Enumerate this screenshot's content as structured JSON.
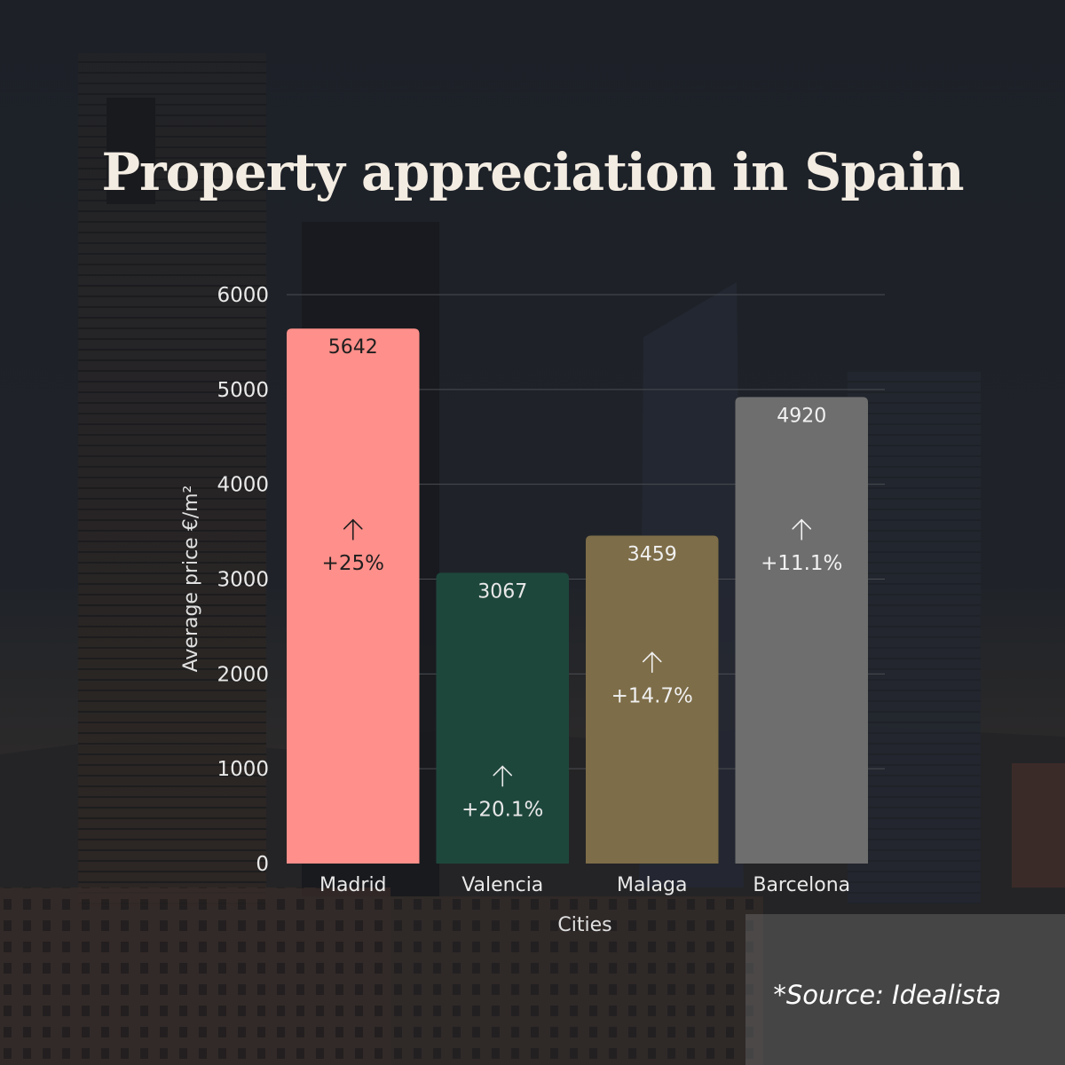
{
  "title": "Property appreciation in Spain",
  "source": "*Source: Idealista",
  "colors": {
    "background": "#1d2128",
    "title": "#f3ece2",
    "gridline": "#4a4c52"
  },
  "chart_data": {
    "type": "bar",
    "title": "Property appreciation in Spain",
    "xlabel": "Cities",
    "ylabel": "Average price €/m²",
    "ylim": [
      0,
      6000
    ],
    "yticks": [
      0,
      1000,
      2000,
      3000,
      4000,
      5000,
      6000
    ],
    "grid": true,
    "categories": [
      "Madrid",
      "Valencia",
      "Malaga",
      "Barcelona"
    ],
    "values": [
      5642,
      3067,
      3459,
      4920
    ],
    "value_labels": [
      "5642",
      "3067",
      "3459",
      "4920"
    ],
    "appreciation": [
      "+25%",
      "+20.1%",
      "+14.7%",
      "+11.1%"
    ],
    "appreciation_direction": "up",
    "appreciation_y": [
      3100,
      500,
      1700,
      3100
    ],
    "bar_colors": [
      "#ff8f8a",
      "#1e473c",
      "#7d6d48",
      "#6e6e6e"
    ],
    "label_colors": [
      "#1f1f1f",
      "#e8e8e8",
      "#f0f0f0",
      "#f2f2f2"
    ]
  }
}
